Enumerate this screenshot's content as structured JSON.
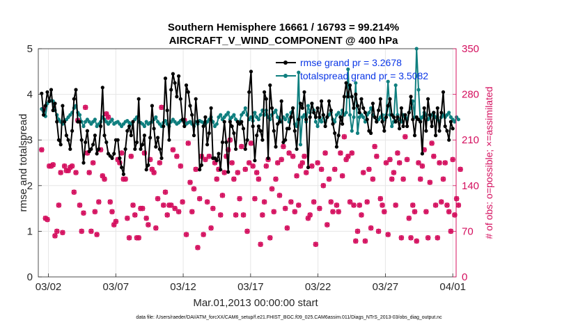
{
  "chart_data": {
    "type": "line",
    "title": "Southern Hemisphere 16661 / 16793 = 99.214%",
    "subtitle": "AIRCRAFT_V_WIND_COMPONENT @ 400 hPa",
    "xlabel": "Mar.01,2013 00:00:00 start",
    "ylabel": "rmse and totalspread",
    "ylabel_right": "# of obs: o=possible; ×=assimilated",
    "footnote": "data file: /Users/raeder/DAI/ATM_forcXX/CAM6_setup/f.e21.FHIST_BGC.f09_025.CAM6assim.011/Diags_NTrS_2013-03/obs_diag_output.nc",
    "xlim": [
      0.25,
      31.25
    ],
    "ylim": [
      0,
      5
    ],
    "ylim_right": [
      0,
      350
    ],
    "x_ticks": [
      1,
      6,
      11,
      16,
      21,
      26,
      31
    ],
    "x_tick_labels": [
      "03/02",
      "03/07",
      "03/12",
      "03/17",
      "03/22",
      "03/27",
      "04/01"
    ],
    "y_ticks": [
      0,
      1,
      2,
      3,
      4,
      5
    ],
    "y_tick_labels": [
      "0",
      "1",
      "2",
      "3",
      "4",
      "5"
    ],
    "y_right_ticks": [
      0,
      70,
      140,
      210,
      280,
      350
    ],
    "y_right_tick_labels": [
      "0",
      "70",
      "140",
      "210",
      "280",
      "350"
    ],
    "legend_position": "top-right",
    "series": [
      {
        "name": "rmse grand pr = 3.2678",
        "color": "#000000",
        "marker": "dot",
        "axis": "left",
        "values": [
          4.02,
          3.55,
          3.75,
          4.05,
          3.85,
          4.1,
          3.65,
          3.8,
          3.4,
          3.0,
          2.9,
          3.75,
          3.4,
          3.1,
          3.0,
          2.8,
          3.2,
          3.9,
          4.1,
          3.4,
          3.4,
          3.0,
          2.5,
          2.95,
          3.2,
          2.75,
          2.8,
          2.9,
          3.1,
          2.7,
          2.8,
          3.3,
          4.15,
          3.1,
          2.95,
          2.7,
          2.65,
          2.6,
          2.7,
          3.0,
          3.0,
          2.6,
          2.4,
          2.25,
          2.8,
          3.2,
          3.3,
          3.1,
          3.4,
          2.8,
          2.95,
          3.9,
          2.8,
          2.9,
          3.1,
          2.35,
          2.45,
          3.05,
          3.75,
          3.25,
          2.85,
          3.05,
          2.8,
          2.6,
          3.3,
          4.35,
          3.65,
          3.0,
          4.1,
          4.45,
          4.25,
          3.95,
          4.4,
          3.9,
          3.45,
          3.3,
          4.2,
          4.05,
          3.75,
          3.55,
          3.1,
          3.9,
          3.4,
          2.35,
          2.45,
          3.3,
          3.5,
          2.9,
          3.15,
          3.7,
          2.6,
          2.6,
          2.55,
          2.7,
          2.35,
          2.95,
          3.4,
          2.95,
          2.3,
          3.4,
          3.3,
          3.15,
          2.8,
          3.4,
          3.35,
          3.4,
          3.25,
          2.8,
          3.0,
          4.05,
          4.5,
          3.3,
          2.55,
          3.1,
          3.3,
          3.2,
          3.0,
          4.05,
          3.9,
          2.6,
          4.2,
          3.7,
          3.2,
          2.85,
          3.35,
          3.4,
          3.85,
          2.95,
          3.0,
          3.25,
          3.25,
          3.5,
          3.7,
          3.2,
          2.8,
          3.45,
          3.8,
          3.7,
          4.05,
          3.45,
          2.4,
          3.5,
          3.8,
          3.6,
          3.5,
          3.7,
          3.5,
          3.85,
          3.55,
          3.3,
          3.5,
          3.85,
          3.65,
          3.35,
          3.15,
          2.85,
          3.1,
          3.5,
          3.35,
          3.95,
          4.25,
          3.95,
          4.2,
          3.95,
          3.7,
          4.0,
          3.75,
          3.6,
          3.9,
          3.7,
          3.6,
          3.45,
          3.2,
          3.15,
          3.8,
          3.5,
          3.4,
          3.65,
          3.9,
          3.4,
          3.2,
          3.5,
          3.75,
          3.9,
          3.55,
          3.5,
          3.4,
          3.5,
          3.25,
          3.7,
          3.3,
          3.55,
          3.3,
          3.6,
          3.95,
          3.45,
          3.1,
          3.5,
          3.45,
          3.4,
          2.7,
          3.7,
          3.2,
          3.9,
          3.55,
          3.3,
          3.6,
          3.1,
          3.7,
          3.2,
          3.6,
          4.05,
          3.3,
          3.2,
          3.0,
          3.4,
          3.25
        ]
      },
      {
        "name": "totalspread grand pr = 3.5082",
        "color": "#0f7f7f",
        "marker": "dot",
        "axis": "left",
        "values": [
          3.68,
          3.62,
          3.52,
          3.8,
          3.85,
          3.86,
          3.85,
          3.65,
          3.55,
          3.45,
          3.4,
          3.35,
          3.42,
          3.45,
          3.5,
          3.55,
          3.6,
          3.7,
          3.75,
          3.6,
          3.55,
          3.4,
          3.3,
          3.4,
          3.45,
          3.4,
          3.35,
          3.4,
          3.45,
          3.3,
          3.35,
          3.4,
          3.5,
          3.45,
          3.4,
          3.35,
          3.4,
          3.45,
          3.35,
          3.38,
          3.4,
          3.35,
          3.3,
          3.35,
          3.4,
          3.42,
          3.38,
          3.35,
          3.4,
          3.45,
          3.5,
          3.4,
          3.38,
          3.35,
          3.3,
          3.4,
          3.35,
          3.38,
          3.4,
          3.45,
          3.5,
          3.4,
          3.35,
          3.3,
          3.38,
          3.42,
          3.35,
          3.3,
          3.4,
          3.45,
          3.4,
          3.35,
          3.38,
          3.42,
          3.45,
          3.4,
          3.35,
          3.38,
          3.4,
          3.35,
          3.3,
          3.4,
          3.35,
          3.42,
          3.4,
          3.38,
          3.35,
          3.4,
          3.45,
          3.5,
          3.4,
          3.3,
          3.35,
          3.5,
          3.55,
          3.45,
          3.5,
          3.55,
          3.6,
          3.45,
          3.5,
          3.55,
          3.45,
          3.4,
          3.4,
          3.55,
          3.6,
          3.7,
          3.55,
          3.45,
          3.5,
          3.42,
          3.6,
          3.5,
          3.45,
          3.55,
          3.65,
          3.55,
          3.65,
          3.5,
          3.45,
          3.55,
          3.6,
          3.65,
          3.5,
          3.45,
          3.4,
          3.5,
          3.45,
          3.55,
          3.4,
          3.6,
          3.7,
          3.35,
          3.3,
          3.45,
          3.3,
          3.5,
          3.55,
          3.4,
          3.75,
          3.6,
          3.8,
          3.65,
          3.4,
          3.3,
          3.45,
          3.4,
          3.55,
          3.4,
          3.5,
          3.55,
          3.6,
          3.45,
          3.4,
          3.55,
          3.6,
          3.5,
          3.65,
          3.55,
          3.6,
          3.45,
          3.55,
          3.7,
          3.5,
          3.6,
          3.45,
          3.5,
          3.55,
          3.5,
          3.4,
          3.55,
          3.6,
          3.7,
          3.55,
          3.5,
          3.4,
          3.45,
          3.5,
          3.55,
          3.45,
          3.55,
          3.6,
          3.55,
          3.5,
          3.4,
          3.45,
          3.55,
          3.45,
          3.4,
          3.55,
          3.5,
          3.45,
          3.6,
          3.7,
          3.85,
          3.5,
          3.55,
          3.45,
          3.4,
          3.5,
          3.6,
          3.55,
          3.45,
          3.5,
          3.55,
          3.6,
          3.5,
          3.45,
          3.4,
          3.5,
          3.55,
          3.5,
          3.55,
          3.6,
          3.5,
          3.45,
          3.4,
          3.5,
          3.45
        ],
        "spikes": [
          {
            "x": 19.5,
            "y": 4.48
          },
          {
            "x": 19.75,
            "y": 2.9
          },
          {
            "x": 23.25,
            "y": 4.55
          },
          {
            "x": 23.5,
            "y": 3.2
          },
          {
            "x": 23.75,
            "y": 4.25
          },
          {
            "x": 24.0,
            "y": 3.15
          },
          {
            "x": 26.25,
            "y": 4.28
          },
          {
            "x": 26.5,
            "y": 3.3
          },
          {
            "x": 26.75,
            "y": 4.2
          },
          {
            "x": 28.25,
            "y": 5.0
          },
          {
            "x": 28.5,
            "y": 4.1
          }
        ],
        "spike_note": "values at listed x replace series points"
      },
      {
        "name": "# obs possible",
        "color": "#d40f5e",
        "marker": "o",
        "axis": "right",
        "values": [
          195,
          257,
          90,
          88,
          170,
          170,
          172,
          63,
          70,
          110,
          160,
          68,
          170,
          163,
          163,
          168,
          170,
          130,
          160,
          240,
          110,
          70,
          98,
          260,
          190,
          160,
          70,
          175,
          100,
          65,
          115,
          195,
          155,
          150,
          250,
          245,
          115,
          100,
          80,
          85,
          180,
          175,
          190,
          150,
          150,
          90,
          60,
          185,
          110,
          95,
          60,
          60,
          105,
          105,
          190,
          90,
          80,
          180,
          165,
          160,
          75,
          120,
          175,
          260,
          110,
          130,
          95,
          110,
          110,
          195,
          105,
          185,
          100,
          170,
          115,
          240,
          65,
          205,
          145,
          100,
          135,
          165,
          45,
          120,
          185,
          65,
          180,
          115,
          185,
          75,
          105,
          175,
          150,
          165,
          95,
          125,
          160,
          185,
          195,
          210,
          175,
          150,
          95,
          160,
          120,
          200,
          95,
          165,
          70,
          175,
          205,
          170,
          120,
          160,
          150,
          50,
          95,
          115,
          170,
          180,
          60,
          135,
          100,
          150,
          175,
          125,
          180,
          200,
          105,
          75,
          190,
          115,
          185,
          100,
          155,
          110,
          170,
          175,
          185,
          160,
          90,
          95,
          170,
          115,
          50,
          175,
          105,
          165,
          140,
          190,
          80,
          150,
          115,
          100,
          165,
          110,
          100,
          190,
          155,
          215,
          180,
          185,
          115,
          190,
          110,
          55,
          70,
          110,
          95,
          160,
          55,
          115,
          165,
          75,
          150,
          200,
          185,
          70,
          120,
          110,
          100,
          175,
          65,
          180,
          150,
          160,
          110,
          190,
          175,
          60,
          150,
          215,
          180,
          90,
          60,
          110,
          100,
          55,
          175,
          150,
          170,
          195,
          100,
          60,
          145,
          205,
          185,
          110,
          60,
          175,
          115,
          150,
          175,
          110,
          100,
          70,
          180,
          95,
          120,
          110,
          165
        ]
      },
      {
        "name": "# obs assimilated",
        "color": "#d40f5e",
        "marker": "x",
        "axis": "right",
        "values": [
          195,
          257,
          90,
          88,
          170,
          170,
          172,
          63,
          70,
          110,
          160,
          68,
          170,
          163,
          163,
          168,
          170,
          130,
          160,
          240,
          110,
          70,
          98,
          260,
          190,
          160,
          70,
          175,
          100,
          65,
          115,
          195,
          155,
          150,
          250,
          245,
          115,
          100,
          80,
          85,
          180,
          175,
          190,
          150,
          150,
          90,
          60,
          185,
          110,
          95,
          60,
          60,
          105,
          105,
          190,
          90,
          80,
          180,
          165,
          160,
          75,
          120,
          175,
          260,
          110,
          130,
          95,
          110,
          110,
          195,
          105,
          185,
          100,
          170,
          115,
          240,
          65,
          205,
          145,
          100,
          135,
          165,
          45,
          120,
          185,
          65,
          180,
          115,
          185,
          75,
          105,
          175,
          150,
          165,
          95,
          125,
          160,
          185,
          195,
          210,
          175,
          150,
          95,
          160,
          120,
          200,
          95,
          165,
          70,
          175,
          205,
          170,
          120,
          160,
          150,
          50,
          95,
          115,
          170,
          180,
          60,
          135,
          100,
          150,
          175,
          125,
          180,
          200,
          105,
          75,
          190,
          115,
          185,
          100,
          155,
          110,
          170,
          175,
          185,
          160,
          90,
          95,
          170,
          115,
          50,
          175,
          105,
          165,
          140,
          190,
          80,
          150,
          115,
          100,
          165,
          110,
          100,
          190,
          155,
          215,
          180,
          185,
          115,
          190,
          110,
          55,
          70,
          110,
          95,
          160,
          55,
          115,
          165,
          75,
          150,
          200,
          185,
          70,
          120,
          110,
          100,
          175,
          65,
          180,
          150,
          160,
          110,
          190,
          175,
          60,
          150,
          215,
          180,
          90,
          60,
          110,
          100,
          55,
          175,
          150,
          170,
          195,
          100,
          60,
          145,
          205,
          185,
          110,
          60,
          175,
          115,
          150,
          175,
          110,
          100,
          70,
          180,
          95,
          120,
          110,
          165
        ]
      }
    ]
  }
}
